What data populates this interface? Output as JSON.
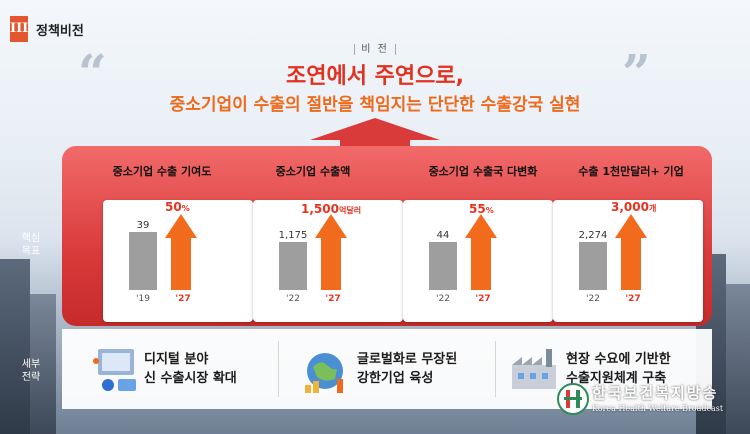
{
  "section": {
    "numeral": "III",
    "title": "정책비전"
  },
  "vision": {
    "label": "비 전",
    "headline_main": "조연에서 주연으로,",
    "headline_sub": "중소기업이 수출의 절반을 책임지는 단단한 수출강국 실현"
  },
  "row_labels": {
    "goals": "핵심\n목표",
    "strategy": "세부\n전략"
  },
  "goals": [
    {
      "title": "중소기업 수출 기여도",
      "base_value": "39",
      "target_value": "50",
      "target_unit": "%",
      "base_year": "'19",
      "target_year": "'27",
      "base_ratio": 0.78
    },
    {
      "title": "중소기업 수출액",
      "base_value": "1,175",
      "target_value": "1,500",
      "target_unit": "억달러",
      "base_year": "'22",
      "target_year": "'27",
      "base_ratio": 0.78
    },
    {
      "title": "중소기업 수출국 다변화",
      "base_value": "44",
      "target_value": "55",
      "target_unit": "%",
      "base_year": "'22",
      "target_year": "'27",
      "base_ratio": 0.8
    },
    {
      "title": "수출 1천만달러+ 기업",
      "base_value": "2,274",
      "target_value": "3,000",
      "target_unit": "개",
      "base_year": "'22",
      "target_year": "'27",
      "base_ratio": 0.76
    }
  ],
  "strategies": [
    {
      "line1": "디지털 분야",
      "line2": "신 수출시장 확대",
      "icon": "digital-market-icon"
    },
    {
      "line1": "글로벌화로 무장된",
      "line2": "강한기업 육성",
      "icon": "globe-growth-icon"
    },
    {
      "line1": "현장 수요에 기반한",
      "line2": "수출지원체계 구축",
      "icon": "factory-icon"
    }
  ],
  "watermark": {
    "name": "한국보건복지방송",
    "sub": "Korea Health Welfare Broadcast"
  },
  "colors": {
    "accent_red": "#d93a3a",
    "arrow_orange": "#f26b1d",
    "base_gray": "#9e9e9e"
  }
}
